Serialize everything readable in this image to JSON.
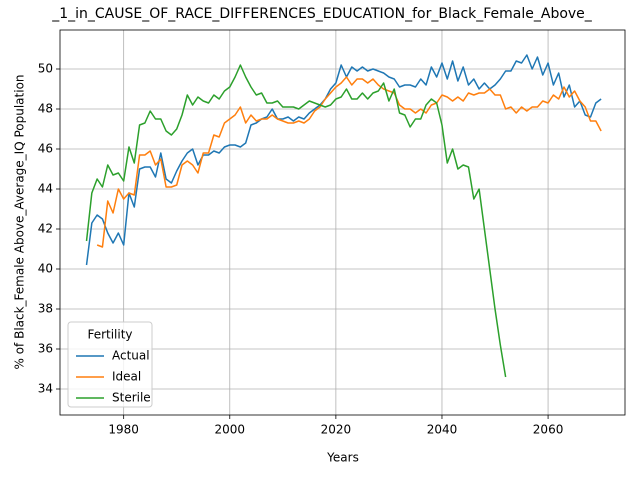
{
  "chart_data": {
    "type": "line",
    "title": "_1_in_CAUSE_OF_RACE_DIFFERENCES_EDUCATION_for_Black_Female_Above_",
    "x_label": "Years",
    "y_label": "% of Black_Female Above_Average_IQ Population",
    "x": [
      1973,
      1974,
      1975,
      1976,
      1977,
      1978,
      1979,
      1980,
      1981,
      1982,
      1983,
      1984,
      1985,
      1986,
      1987,
      1988,
      1989,
      1990,
      1991,
      1992,
      1993,
      1994,
      1995,
      1996,
      1997,
      1998,
      1999,
      2000,
      2001,
      2002,
      2003,
      2004,
      2005,
      2006,
      2007,
      2008,
      2009,
      2010,
      2011,
      2012,
      2013,
      2014,
      2015,
      2016,
      2017,
      2018,
      2019,
      2020,
      2021,
      2022,
      2023,
      2024,
      2025,
      2026,
      2027,
      2028,
      2029,
      2030,
      2031,
      2032,
      2033,
      2034,
      2035,
      2036,
      2037,
      2038,
      2039,
      2040,
      2041,
      2042,
      2043,
      2044,
      2045,
      2046,
      2047,
      2048,
      2049,
      2050,
      2051,
      2052,
      2053,
      2054,
      2055,
      2056,
      2057,
      2058,
      2059,
      2060,
      2061,
      2062,
      2063,
      2064,
      2065,
      2066,
      2067,
      2068,
      2069,
      2070
    ],
    "series": [
      {
        "name": "Actual",
        "color": "#1f77b4",
        "values": [
          40.2,
          42.3,
          42.7,
          42.5,
          41.8,
          41.3,
          41.8,
          41.2,
          43.8,
          43.1,
          45.0,
          45.1,
          45.1,
          44.6,
          45.8,
          44.5,
          44.3,
          44.9,
          45.4,
          45.8,
          46.0,
          45.2,
          45.7,
          45.7,
          45.9,
          45.8,
          46.1,
          46.2,
          46.2,
          46.1,
          46.3,
          47.2,
          47.3,
          47.5,
          47.6,
          48.0,
          47.5,
          47.5,
          47.6,
          47.4,
          47.6,
          47.5,
          47.8,
          48.0,
          48.2,
          48.5,
          49.0,
          49.3,
          50.2,
          49.6,
          50.1,
          49.9,
          50.1,
          49.9,
          50.0,
          49.9,
          49.8,
          49.6,
          49.5,
          49.1,
          49.2,
          49.2,
          49.1,
          49.5,
          49.2,
          50.1,
          49.6,
          50.3,
          49.5,
          50.4,
          49.4,
          50.1,
          49.2,
          49.5,
          49.0,
          49.3,
          49.0,
          49.2,
          49.5,
          49.9,
          49.9,
          50.4,
          50.3,
          50.7,
          50.0,
          50.6,
          49.7,
          50.3,
          49.2,
          49.8,
          48.6,
          49.2,
          48.1,
          48.4,
          47.7,
          47.6,
          48.3,
          48.5
        ]
      },
      {
        "name": "Ideal",
        "color": "#ff7f0e",
        "values": [
          null,
          null,
          41.2,
          41.1,
          43.4,
          42.8,
          44.0,
          43.5,
          43.8,
          43.7,
          45.7,
          45.7,
          45.9,
          45.2,
          45.5,
          44.1,
          44.1,
          44.2,
          45.2,
          45.4,
          45.2,
          44.8,
          45.8,
          45.8,
          46.7,
          46.6,
          47.3,
          47.5,
          47.7,
          48.1,
          47.3,
          47.7,
          47.4,
          47.5,
          47.5,
          47.7,
          47.5,
          47.4,
          47.3,
          47.3,
          47.4,
          47.3,
          47.5,
          47.9,
          48.1,
          48.5,
          48.8,
          49.1,
          49.3,
          49.6,
          49.2,
          49.5,
          49.5,
          49.3,
          49.5,
          49.2,
          49.0,
          48.9,
          48.8,
          48.2,
          48.0,
          48.0,
          47.8,
          48.0,
          47.8,
          48.2,
          48.3,
          48.7,
          48.6,
          48.4,
          48.6,
          48.4,
          48.8,
          48.7,
          48.8,
          48.8,
          49.0,
          48.7,
          48.7,
          48.0,
          48.1,
          47.8,
          48.1,
          47.9,
          48.1,
          48.1,
          48.4,
          48.3,
          48.7,
          48.5,
          49.1,
          48.6,
          48.9,
          48.4,
          48.1,
          47.4,
          47.4,
          46.9
        ]
      },
      {
        "name": "Sterile",
        "color": "#2ca02c",
        "values": [
          41.4,
          43.8,
          44.5,
          44.1,
          45.2,
          44.7,
          44.8,
          44.4,
          46.1,
          45.3,
          47.2,
          47.3,
          47.9,
          47.5,
          47.5,
          46.9,
          46.7,
          47.0,
          47.7,
          48.7,
          48.2,
          48.6,
          48.4,
          48.3,
          48.7,
          48.5,
          48.9,
          49.1,
          49.6,
          50.2,
          49.6,
          49.1,
          48.7,
          48.8,
          48.3,
          48.3,
          48.4,
          48.1,
          48.1,
          48.1,
          48.0,
          48.2,
          48.4,
          48.3,
          48.2,
          48.1,
          48.2,
          48.5,
          48.6,
          49.0,
          48.5,
          48.5,
          48.8,
          48.5,
          48.8,
          48.9,
          49.3,
          48.4,
          49.0,
          47.8,
          47.7,
          47.1,
          47.5,
          47.5,
          48.2,
          48.5,
          48.3,
          47.2,
          45.3,
          46.0,
          45.0,
          45.2,
          45.1,
          43.5,
          44.0,
          42.0,
          40.0,
          38.0,
          36.2,
          34.6,
          null,
          null,
          null,
          null,
          null,
          null,
          null,
          null,
          null,
          null,
          null,
          null,
          null,
          null,
          null,
          null,
          null,
          null
        ]
      }
    ],
    "xlim": [
      1968,
      2074.5
    ],
    "ylim": [
      32.7,
      51.95
    ],
    "xticks": [
      1980,
      2000,
      2020,
      2040,
      2060
    ],
    "yticks": [
      34,
      36,
      38,
      40,
      42,
      44,
      46,
      48,
      50
    ],
    "grid": true,
    "legend_title": "Fertility",
    "legend_loc": "lower left"
  }
}
